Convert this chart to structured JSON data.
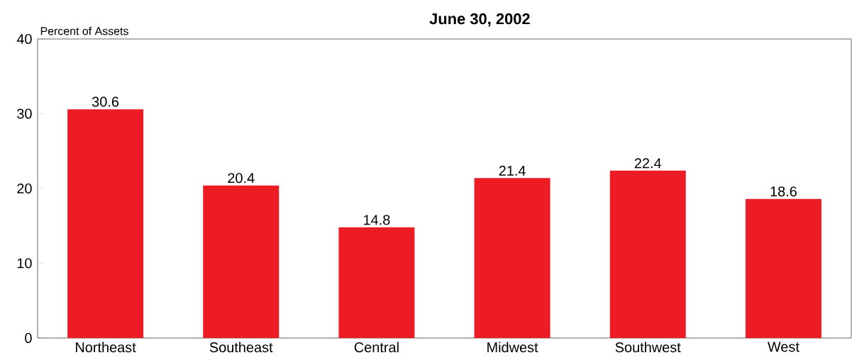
{
  "chart_data": {
    "type": "bar",
    "title": "June 30, 2002",
    "ylabel": "Percent of Assets",
    "categories": [
      "Northeast",
      "Southeast",
      "Central",
      "Midwest",
      "Southwest",
      "West"
    ],
    "values": [
      30.6,
      20.4,
      14.8,
      21.4,
      22.4,
      18.6
    ],
    "color": "#ed1c24",
    "ylim": [
      0,
      40
    ],
    "yticks": [
      0,
      10,
      20,
      30,
      40
    ],
    "data_labels": true,
    "grid": false
  }
}
